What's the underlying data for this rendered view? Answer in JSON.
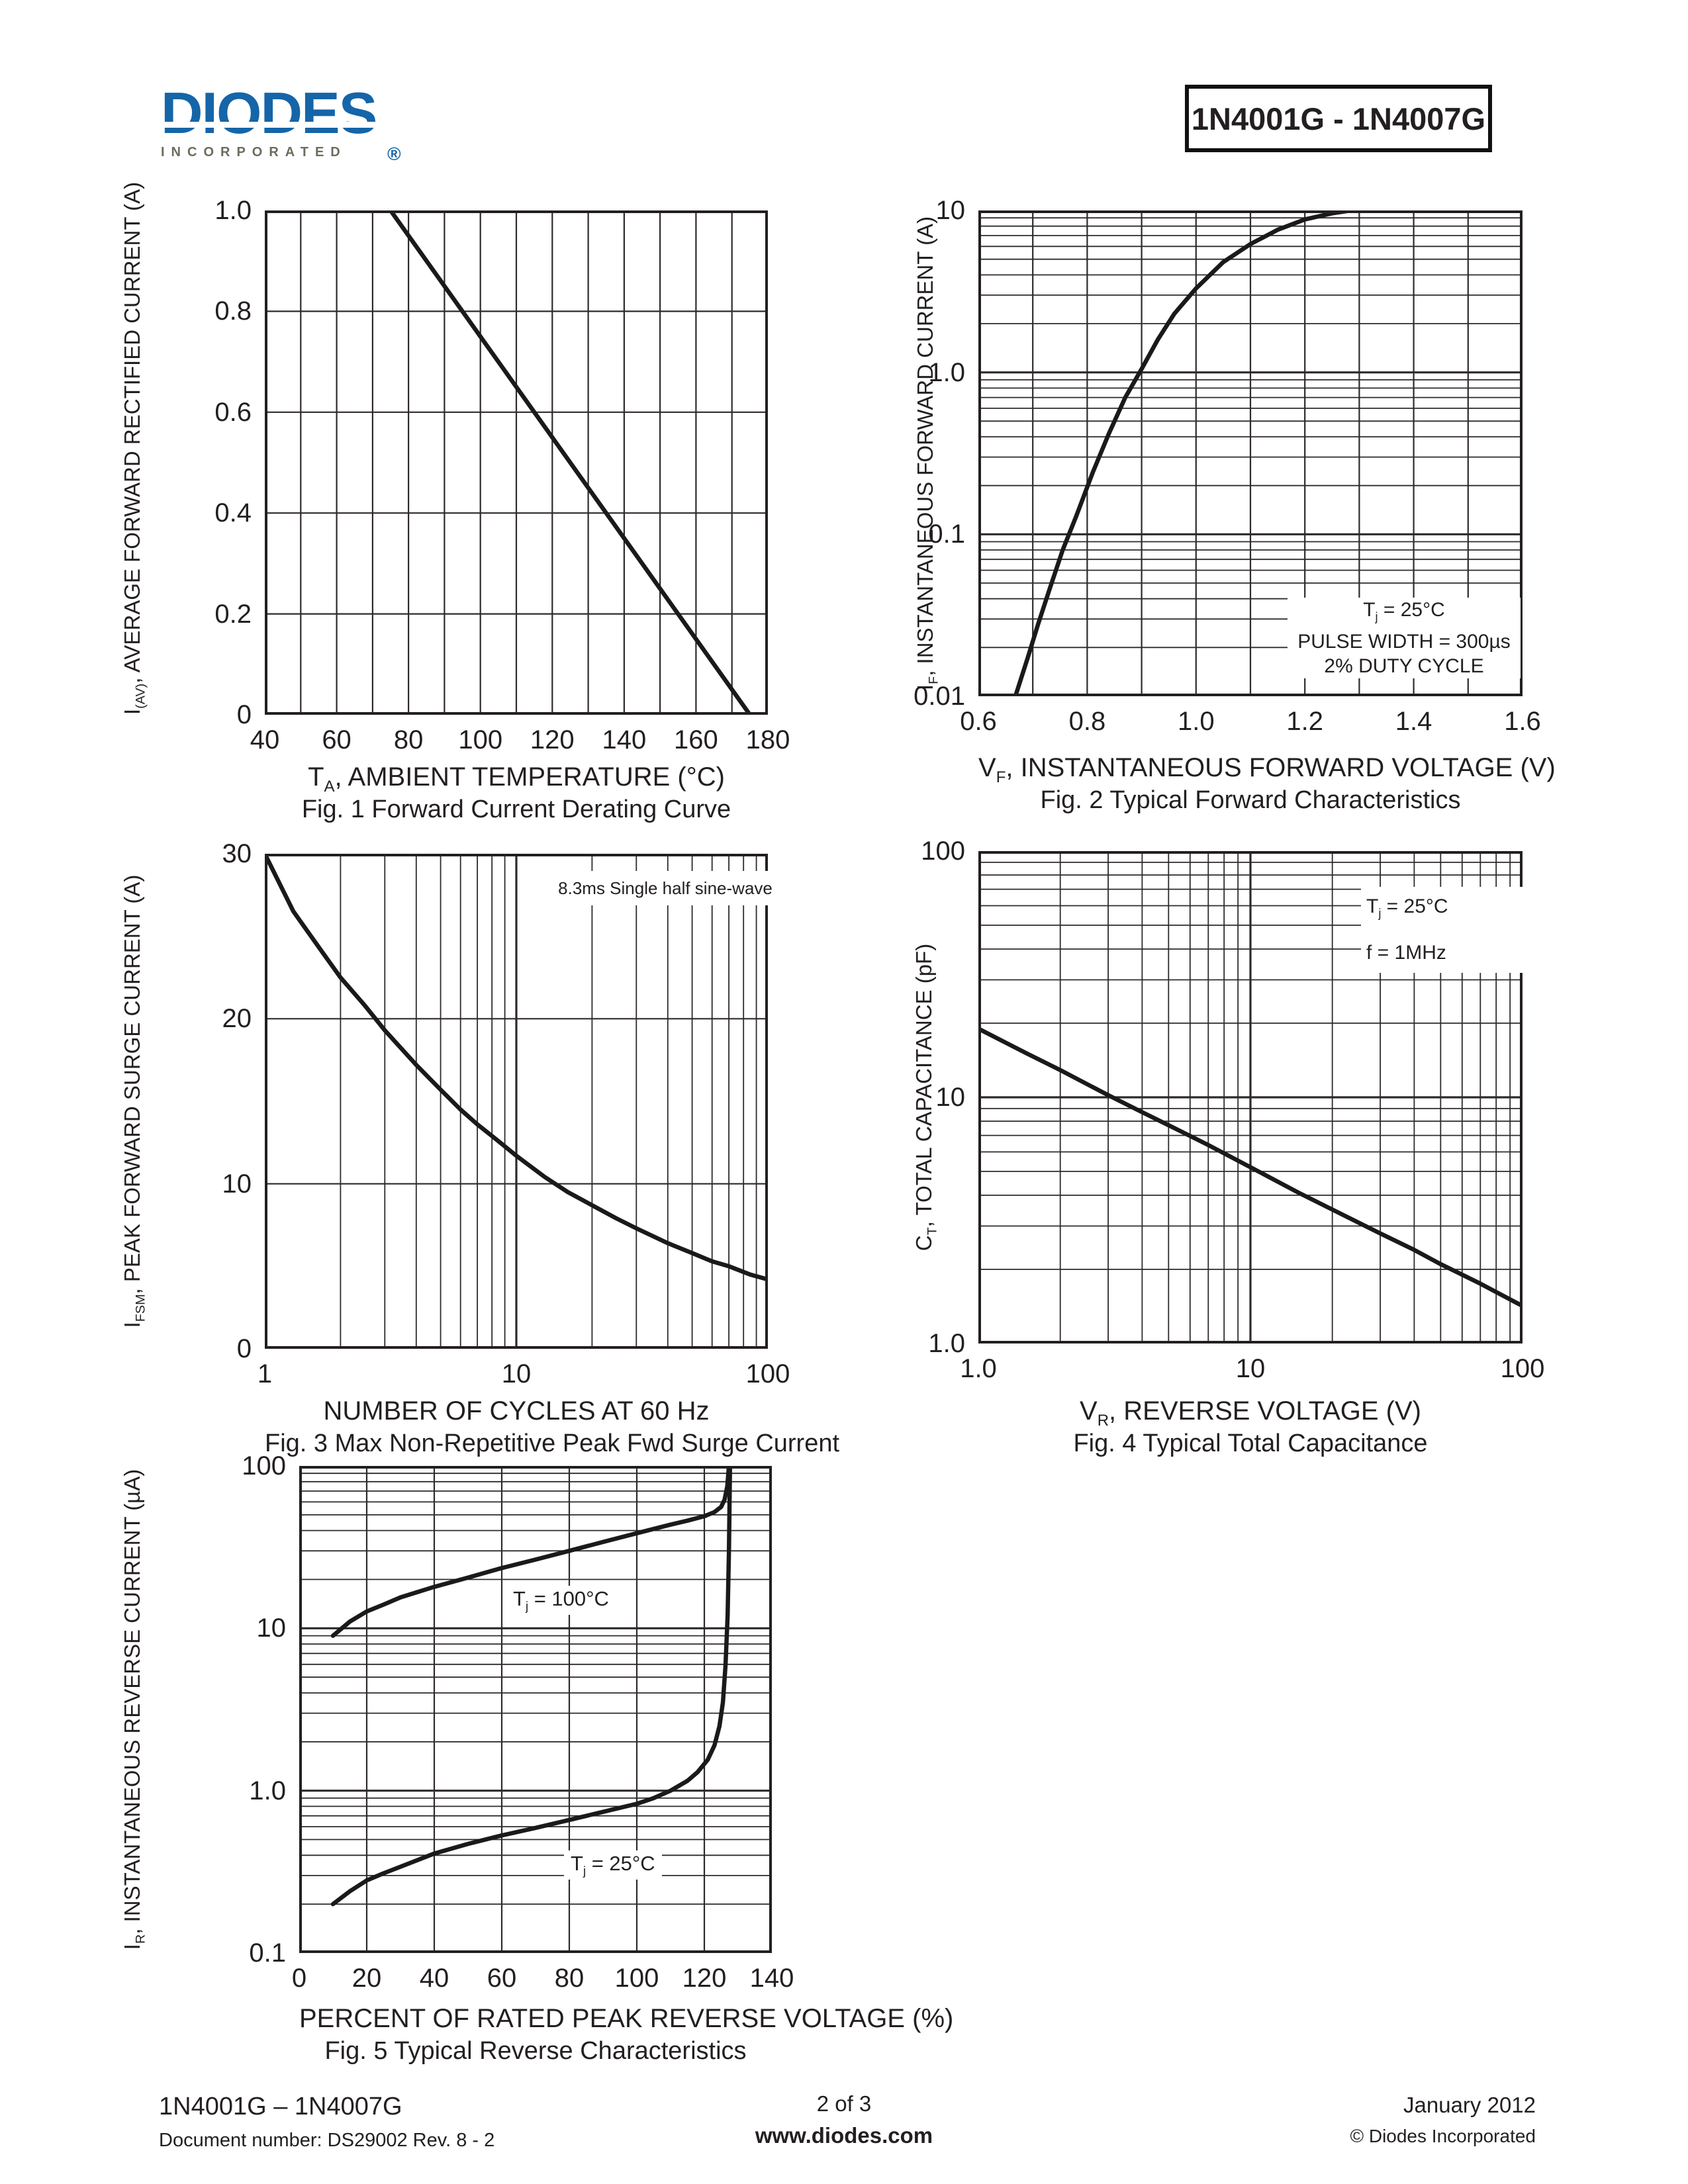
{
  "header": {
    "logo_text": "DIODES",
    "logo_sub": "INCORPORATED",
    "logo_reg": "®",
    "part_range": "1N4001G - 1N4007G"
  },
  "colors": {
    "logo_blue": "#1565a8",
    "logo_gray": "#6b6c5e",
    "ink": "#231f20",
    "grid": "#2e2a2b",
    "curve": "#1a1a1a"
  },
  "chart_data": [
    {
      "id": "fig1",
      "type": "line",
      "title": "Fig. 1 Forward Current Derating Curve",
      "xlabel": {
        "pre": "T",
        "sub": "A",
        "post": ", AMBIENT TEMPERATURE (°C)"
      },
      "ylabel": {
        "pre": "I",
        "sub": "(AV)",
        "post": ", AVERAGE FORWARD RECTIFIED CURRENT (A)"
      },
      "xscale": "linear",
      "xmin": 40,
      "xmax": 180,
      "xgrid": 10,
      "yscale": "linear",
      "ymin": 0,
      "ymax": 1.0,
      "ygrid": 0.2,
      "xticks": {
        "values": [
          40,
          60,
          80,
          100,
          120,
          140,
          160,
          180
        ],
        "labels": [
          "40",
          "60",
          "80",
          "100",
          "120",
          "140",
          "160",
          "180"
        ]
      },
      "yticks": {
        "values": [
          1.0,
          0.8,
          0.6,
          0.4,
          0.2,
          0
        ],
        "labels": [
          "1.0",
          "0.8",
          "0.6",
          "0.4",
          "0.2",
          "0"
        ]
      },
      "series": [
        {
          "name": "derating-curve",
          "points": [
            [
              40,
              1.0
            ],
            [
              75,
              1.0
            ],
            [
              175,
              0
            ]
          ]
        }
      ],
      "annotations": []
    },
    {
      "id": "fig2",
      "type": "line",
      "title": "Fig. 2  Typical Forward Characteristics",
      "xlabel": {
        "pre": "V",
        "sub": "F",
        "post": ", INSTANTANEOUS FORWARD VOLTAGE (V)"
      },
      "ylabel": {
        "pre": "I",
        "sub": "F",
        "post": ", INSTANTANEOUS FORWARD CURRENT (A)"
      },
      "xscale": "linear",
      "xmin": 0.6,
      "xmax": 1.6,
      "xgrid": 0.1,
      "yscale": "log",
      "ymin": 0.01,
      "ymax": 10,
      "xticks": {
        "values": [
          0.6,
          0.8,
          1.0,
          1.2,
          1.4,
          1.6
        ],
        "labels": [
          "0.6",
          "0.8",
          "1.0",
          "1.2",
          "1.4",
          "1.6"
        ]
      },
      "yticks": {
        "values": [
          10,
          1.0,
          0.1,
          0.01
        ],
        "labels": [
          "10",
          "1.0",
          "0.1",
          "0.01"
        ]
      },
      "series": [
        {
          "name": "forward-characteristic",
          "points": [
            [
              0.668,
              0.01
            ],
            [
              0.69,
              0.017
            ],
            [
              0.71,
              0.028
            ],
            [
              0.73,
              0.045
            ],
            [
              0.755,
              0.08
            ],
            [
              0.78,
              0.13
            ],
            [
              0.81,
              0.24
            ],
            [
              0.84,
              0.42
            ],
            [
              0.87,
              0.7
            ],
            [
              0.9,
              1.05
            ],
            [
              0.93,
              1.6
            ],
            [
              0.96,
              2.3
            ],
            [
              1.0,
              3.3
            ],
            [
              1.05,
              4.8
            ],
            [
              1.1,
              6.2
            ],
            [
              1.15,
              7.6
            ],
            [
              1.2,
              8.8
            ],
            [
              1.25,
              9.6
            ],
            [
              1.285,
              10.0
            ]
          ]
        }
      ],
      "annotations": [
        {
          "pre": "T",
          "sub": "j",
          "post": " = 25°C"
        },
        {
          "plain": "PULSE WIDTH = 300µs"
        },
        {
          "plain": "2% DUTY CYCLE"
        }
      ]
    },
    {
      "id": "fig3",
      "type": "line",
      "title": "Fig. 3  Max Non-Repetitive Peak Fwd Surge Current",
      "xlabel": {
        "pre": "NUMBER OF CYCLES AT 60 Hz",
        "sub": "",
        "post": ""
      },
      "ylabel": {
        "pre": "I",
        "sub": "FSM",
        "post": ", PEAK FORWARD SURGE CURRENT (A)"
      },
      "xscale": "log",
      "xmin": 1,
      "xmax": 100,
      "yscale": "linear",
      "ymin": 0,
      "ymax": 30,
      "ygrid": 10,
      "xticks": {
        "values": [
          1,
          10,
          100
        ],
        "labels": [
          "1",
          "10",
          "100"
        ]
      },
      "yticks": {
        "values": [
          30,
          20,
          10,
          0
        ],
        "labels": [
          "30",
          "20",
          "10",
          "0"
        ]
      },
      "series": [
        {
          "name": "surge-current",
          "points": [
            [
              1,
              30
            ],
            [
              1.3,
              26.5
            ],
            [
              1.7,
              24
            ],
            [
              2,
              22.5
            ],
            [
              2.5,
              20.8
            ],
            [
              3,
              19.3
            ],
            [
              4,
              17.2
            ],
            [
              5,
              15.7
            ],
            [
              6,
              14.5
            ],
            [
              7,
              13.6
            ],
            [
              8,
              12.9
            ],
            [
              10,
              11.7
            ],
            [
              13,
              10.4
            ],
            [
              16,
              9.5
            ],
            [
              20,
              8.7
            ],
            [
              25,
              7.9
            ],
            [
              30,
              7.3
            ],
            [
              40,
              6.4
            ],
            [
              50,
              5.8
            ],
            [
              60,
              5.3
            ],
            [
              70,
              5.0
            ],
            [
              85,
              4.5
            ],
            [
              100,
              4.2
            ]
          ]
        }
      ],
      "annotations": [
        {
          "plain": "8.3ms Single half sine-wave"
        }
      ]
    },
    {
      "id": "fig4",
      "type": "line",
      "title": "Fig. 4  Typical Total Capacitance",
      "xlabel": {
        "pre": "V",
        "sub": "R",
        "post": ", REVERSE VOLTAGE (V)"
      },
      "ylabel": {
        "pre": "C",
        "sub": "T",
        "post": ", TOTAL CAPACITANCE (pF)"
      },
      "xscale": "log",
      "xmin": 1,
      "xmax": 100,
      "yscale": "log",
      "ymin": 1,
      "ymax": 100,
      "xticks": {
        "values": [
          1,
          10,
          100
        ],
        "labels": [
          "1.0",
          "10",
          "100"
        ]
      },
      "yticks": {
        "values": [
          100,
          10,
          1
        ],
        "labels": [
          "100",
          "10",
          "1.0"
        ]
      },
      "series": [
        {
          "name": "total-capacitance",
          "points": [
            [
              1,
              19
            ],
            [
              1.5,
              15.1
            ],
            [
              2,
              12.9
            ],
            [
              3,
              10.2
            ],
            [
              4,
              8.7
            ],
            [
              5,
              7.7
            ],
            [
              7,
              6.4
            ],
            [
              10,
              5.2
            ],
            [
              15,
              4.1
            ],
            [
              20,
              3.5
            ],
            [
              30,
              2.8
            ],
            [
              40,
              2.4
            ],
            [
              50,
              2.1
            ],
            [
              70,
              1.75
            ],
            [
              100,
              1.42
            ]
          ]
        }
      ],
      "annotations": [
        {
          "pre": "T",
          "sub": "j",
          "post": " = 25°C"
        },
        {
          "plain": "f = 1MHz"
        }
      ]
    },
    {
      "id": "fig5",
      "type": "line",
      "title": "Fig. 5  Typical Reverse Characteristics",
      "xlabel": {
        "pre": "PERCENT OF RATED PEAK REVERSE VOLTAGE (%)",
        "sub": "",
        "post": ""
      },
      "ylabel": {
        "pre": "I",
        "sub": "R",
        "post": ", INSTANTANEOUS REVERSE CURRENT (µA)"
      },
      "xscale": "linear",
      "xmin": 0,
      "xmax": 140,
      "xgrid": 20,
      "yscale": "log",
      "ymin": 0.1,
      "ymax": 100,
      "xticks": {
        "values": [
          0,
          20,
          40,
          60,
          80,
          100,
          120,
          140
        ],
        "labels": [
          "0",
          "20",
          "40",
          "60",
          "80",
          "100",
          "120",
          "140"
        ]
      },
      "yticks": {
        "values": [
          100,
          10,
          1.0,
          0.1
        ],
        "labels": [
          "100",
          "10",
          "1.0",
          "0.1"
        ]
      },
      "series": [
        {
          "name": "Tj = 100°C",
          "points": [
            [
              10,
              9
            ],
            [
              15,
              11
            ],
            [
              20,
              12.7
            ],
            [
              25,
              14
            ],
            [
              30,
              15.5
            ],
            [
              40,
              18
            ],
            [
              50,
              20.5
            ],
            [
              60,
              23.5
            ],
            [
              70,
              26.5
            ],
            [
              80,
              30
            ],
            [
              90,
              34
            ],
            [
              100,
              38.5
            ],
            [
              110,
              43.5
            ],
            [
              115,
              46
            ],
            [
              120,
              49
            ],
            [
              123,
              52
            ],
            [
              125,
              56
            ],
            [
              126,
              62
            ],
            [
              126.8,
              75
            ],
            [
              127.3,
              100
            ]
          ]
        },
        {
          "name": "Tj = 25°C",
          "points": [
            [
              10,
              0.2
            ],
            [
              15,
              0.24
            ],
            [
              20,
              0.28
            ],
            [
              25,
              0.31
            ],
            [
              30,
              0.34
            ],
            [
              40,
              0.41
            ],
            [
              50,
              0.47
            ],
            [
              60,
              0.53
            ],
            [
              70,
              0.59
            ],
            [
              80,
              0.66
            ],
            [
              90,
              0.74
            ],
            [
              100,
              0.83
            ],
            [
              105,
              0.9
            ],
            [
              110,
              1.0
            ],
            [
              115,
              1.15
            ],
            [
              118,
              1.3
            ],
            [
              121,
              1.55
            ],
            [
              123,
              1.9
            ],
            [
              124.5,
              2.5
            ],
            [
              125.5,
              3.5
            ],
            [
              126.3,
              6.0
            ],
            [
              126.9,
              12
            ],
            [
              127.3,
              30
            ],
            [
              127.6,
              100
            ]
          ]
        }
      ],
      "annotations": [
        {
          "pre": "T",
          "sub": "j",
          "post": " = 100°C"
        },
        {
          "pre": "T",
          "sub": "j",
          "post": " = 25°C"
        }
      ]
    }
  ],
  "footer": {
    "left_line1": "1N4001G – 1N4007G",
    "left_line2": "Document number: DS29002 Rev. 8 - 2",
    "center_line1": "2 of 3",
    "center_line2": "www.diodes.com",
    "right_line1": "January 2012",
    "right_line2": "© Diodes Incorporated"
  }
}
